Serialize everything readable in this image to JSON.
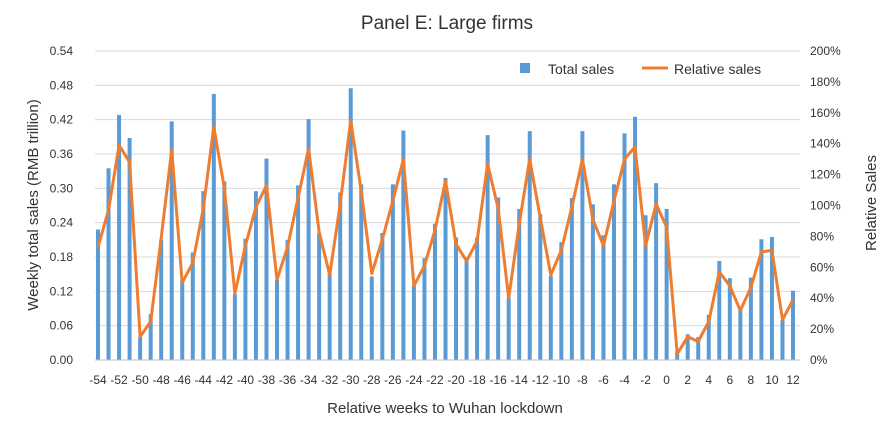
{
  "colors": {
    "total": "#5b9bd5",
    "relative": "#ed7d31",
    "grid": "#d9d9d9",
    "axis": "#bfbfbf",
    "text": "#333333"
  },
  "chart_data": {
    "type": "bar",
    "title": "Panel E: Large firms",
    "xlabel": "Relative weeks to Wuhan lockdown",
    "ylabel": "Weekly total sales (RMB trillion)",
    "y2label": "Relative Sales",
    "grid": true,
    "legend_position": "top-right",
    "x": [
      -54,
      -53,
      -52,
      -51,
      -50,
      -49,
      -48,
      -47,
      -46,
      -45,
      -44,
      -43,
      -42,
      -41,
      -40,
      -39,
      -38,
      -37,
      -36,
      -35,
      -34,
      -33,
      -32,
      -31,
      -30,
      -29,
      -28,
      -27,
      -26,
      -25,
      -24,
      -23,
      -22,
      -21,
      -20,
      -19,
      -18,
      -17,
      -16,
      -15,
      -14,
      -13,
      -12,
      -11,
      -10,
      -9,
      -8,
      -7,
      -6,
      -5,
      -4,
      -3,
      -2,
      -1,
      0,
      1,
      2,
      3,
      4,
      5,
      6,
      7,
      8,
      9,
      10,
      11,
      12
    ],
    "x_tick_labels": [
      "-54",
      "-52",
      "-50",
      "-48",
      "-46",
      "-44",
      "-42",
      "-40",
      "-38",
      "-36",
      "-34",
      "-32",
      "-30",
      "-28",
      "-26",
      "-24",
      "-22",
      "-20",
      "-18",
      "-16",
      "-14",
      "-12",
      "-10",
      "-8",
      "-6",
      "-4",
      "-2",
      "0",
      "2",
      "4",
      "6",
      "8",
      "10",
      "12"
    ],
    "y_ticks": [
      "0.00",
      "0.06",
      "0.12",
      "0.18",
      "0.24",
      "0.30",
      "0.36",
      "0.42",
      "0.48",
      "0.54"
    ],
    "y2_ticks": [
      "0%",
      "20%",
      "40%",
      "60%",
      "80%",
      "100%",
      "120%",
      "140%",
      "160%",
      "180%",
      "200%"
    ],
    "ylim": [
      0,
      0.54
    ],
    "y2lim": [
      0,
      2.0
    ],
    "series": [
      {
        "name": "Total sales",
        "type": "bar",
        "axis": "left",
        "values": [
          0.228,
          0.335,
          0.428,
          0.388,
          0.04,
          0.08,
          0.21,
          0.417,
          0.141,
          0.188,
          0.295,
          0.465,
          0.312,
          0.115,
          0.212,
          0.295,
          0.352,
          0.14,
          0.21,
          0.305,
          0.421,
          0.222,
          0.15,
          0.293,
          0.475,
          0.307,
          0.146,
          0.222,
          0.307,
          0.401,
          0.13,
          0.178,
          0.238,
          0.318,
          0.214,
          0.179,
          0.214,
          0.393,
          0.284,
          0.109,
          0.264,
          0.4,
          0.255,
          0.147,
          0.206,
          0.283,
          0.4,
          0.272,
          0.218,
          0.307,
          0.396,
          0.425,
          0.253,
          0.309,
          0.264,
          0.015,
          0.045,
          0.04,
          0.079,
          0.173,
          0.143,
          0.09,
          0.144,
          0.211,
          0.215,
          0.07,
          0.121
        ]
      },
      {
        "name": "Relative sales",
        "type": "line",
        "axis": "right",
        "values": [
          0.73,
          0.97,
          1.39,
          1.28,
          0.15,
          0.25,
          0.79,
          1.36,
          0.5,
          0.63,
          0.98,
          1.51,
          1.11,
          0.43,
          0.74,
          0.99,
          1.13,
          0.52,
          0.73,
          1.05,
          1.37,
          0.83,
          0.55,
          1.01,
          1.55,
          1.09,
          0.56,
          0.78,
          1.03,
          1.3,
          0.48,
          0.61,
          0.84,
          1.16,
          0.75,
          0.64,
          0.77,
          1.27,
          0.98,
          0.4,
          0.88,
          1.3,
          0.92,
          0.55,
          0.71,
          0.99,
          1.3,
          0.91,
          0.74,
          1.03,
          1.3,
          1.38,
          0.74,
          1.01,
          0.86,
          0.04,
          0.15,
          0.12,
          0.25,
          0.57,
          0.48,
          0.32,
          0.47,
          0.7,
          0.71,
          0.26,
          0.39
        ]
      }
    ]
  }
}
